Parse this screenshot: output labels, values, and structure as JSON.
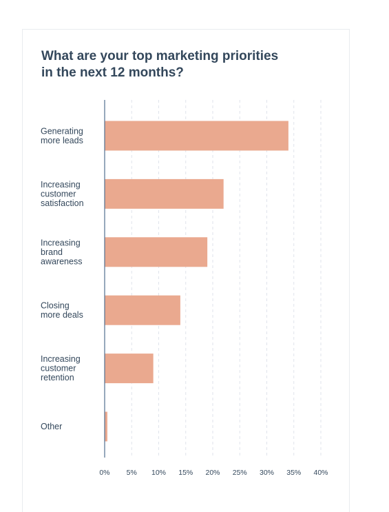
{
  "chart_data": {
    "type": "bar",
    "orientation": "horizontal",
    "title": "What are your top marketing priorities in the next 12 months?",
    "categories": [
      "Generating more leads",
      "Increasing customer satisfaction",
      "Increasing brand awareness",
      "Closing more deals",
      "Increasing customer retention",
      "Other"
    ],
    "category_label_lines": [
      [
        "Generating",
        "more leads"
      ],
      [
        "Increasing",
        "customer",
        "satisfaction"
      ],
      [
        "Increasing",
        "brand",
        "awareness"
      ],
      [
        "Closing",
        "more deals"
      ],
      [
        "Increasing",
        "customer",
        "retention"
      ],
      [
        "Other"
      ]
    ],
    "values": [
      34,
      22,
      19,
      14,
      9,
      0.5
    ],
    "xticks": [
      "0%",
      "5%",
      "10%",
      "15%",
      "20%",
      "25%",
      "30%",
      "35%",
      "40%"
    ],
    "xlim": [
      0,
      40
    ],
    "grid": true,
    "bar_color": "#eaa98f",
    "axis_color": "#516f90",
    "grid_color": "#dfe3eb"
  }
}
